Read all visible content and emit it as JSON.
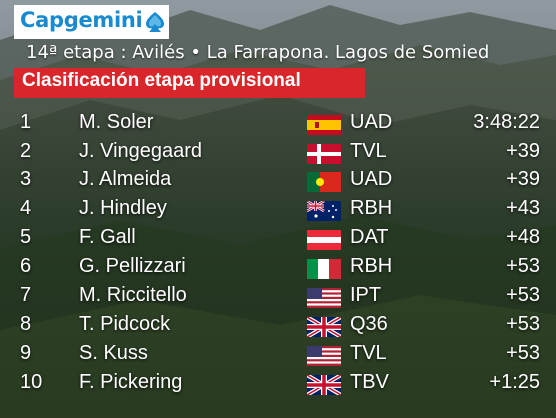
{
  "header": {
    "logo_text": "Capgemini",
    "stage_line": "14ª etapa : Avilés • La Farrapona. Lagos de Somied",
    "banner_title": "Clasificación etapa provisional"
  },
  "results": [
    {
      "pos": "1",
      "rider": "M. Soler",
      "flag_icon": "spain-flag-icon",
      "team": "UAD",
      "time": "3:48:22"
    },
    {
      "pos": "2",
      "rider": "J. Vingegaard",
      "flag_icon": "denmark-flag-icon",
      "team": "TVL",
      "time": "+39"
    },
    {
      "pos": "3",
      "rider": "J. Almeida",
      "flag_icon": "portugal-flag-icon",
      "team": "UAD",
      "time": "+39"
    },
    {
      "pos": "4",
      "rider": "J. Hindley",
      "flag_icon": "australia-flag-icon",
      "team": "RBH",
      "time": "+43"
    },
    {
      "pos": "5",
      "rider": "F. Gall",
      "flag_icon": "austria-flag-icon",
      "team": "DAT",
      "time": "+48"
    },
    {
      "pos": "6",
      "rider": "G. Pellizzari",
      "flag_icon": "italy-flag-icon",
      "team": "RBH",
      "time": "+53"
    },
    {
      "pos": "7",
      "rider": "M. Riccitello",
      "flag_icon": "usa-flag-icon",
      "team": "IPT",
      "time": "+53"
    },
    {
      "pos": "8",
      "rider": "T. Pidcock",
      "flag_icon": "uk-flag-icon",
      "team": "Q36",
      "time": "+53"
    },
    {
      "pos": "9",
      "rider": "S. Kuss",
      "flag_icon": "usa-flag-icon",
      "team": "TVL",
      "time": "+53"
    },
    {
      "pos": "10",
      "rider": "F. Pickering",
      "flag_icon": "uk-flag-icon",
      "team": "TBV",
      "time": "+1:25"
    }
  ],
  "colors": {
    "banner_red": "#d8262a",
    "logo_blue": "#1a8ad0",
    "text": "#ffffff"
  }
}
